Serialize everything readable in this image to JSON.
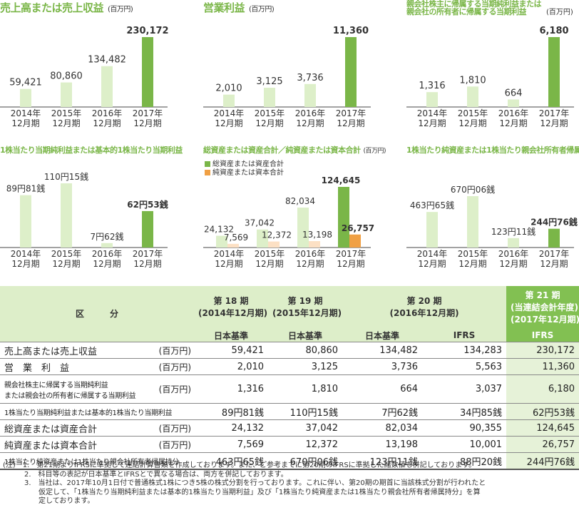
{
  "chart_data": [
    {
      "id": "c1",
      "type": "bar",
      "title": "売上高または売上収益",
      "unit": "(百万円)",
      "categories": [
        "2014年\n12月期",
        "2015年\n12月期",
        "2016年\n12月期",
        "2017年\n12月期"
      ],
      "values": [
        59421,
        80860,
        134482,
        230172
      ],
      "labels": [
        "59,421",
        "80,860",
        "134,482",
        "230,172"
      ]
    },
    {
      "id": "c2",
      "type": "bar",
      "title": "営業利益",
      "unit": "(百万円)",
      "categories": [
        "2014年\n12月期",
        "2015年\n12月期",
        "2016年\n12月期",
        "2017年\n12月期"
      ],
      "values": [
        2010,
        3125,
        3736,
        11360
      ],
      "labels": [
        "2,010",
        "3,125",
        "3,736",
        "11,360"
      ]
    },
    {
      "id": "c3",
      "type": "bar",
      "title": "親会社株主に帰属する当期純利益または\n親会社の所有者に帰属する当期利益",
      "unit": "(百万円)",
      "categories": [
        "2014年\n12月期",
        "2015年\n12月期",
        "2016年\n12月期",
        "2017年\n12月期"
      ],
      "values": [
        1316,
        1810,
        664,
        6180
      ],
      "labels": [
        "1,316",
        "1,810",
        "664",
        "6,180"
      ]
    },
    {
      "id": "c4",
      "type": "bar",
      "title": "1株当たり当期純利益または基本的1株当たり当期利益",
      "unit": "",
      "categories": [
        "2014年\n12月期",
        "2015年\n12月期",
        "2016年\n12月期",
        "2017年\n12月期"
      ],
      "values": [
        89.81,
        110.15,
        7.62,
        62.53
      ],
      "labels": [
        "89円81銭",
        "110円15銭",
        "7円62銭",
        "62円53銭"
      ]
    },
    {
      "id": "c5",
      "type": "bar",
      "title": "総資産または資産合計／純資産または資本合計",
      "unit": "(百万円)",
      "categories": [
        "2014年\n12月期",
        "2015年\n12月期",
        "2016年\n12月期",
        "2017年\n12月期"
      ],
      "series": [
        {
          "name": "総資産または資産合計",
          "values": [
            24132,
            37042,
            82034,
            124645
          ],
          "labels": [
            "24,132",
            "37,042",
            "82,034",
            "124,645"
          ]
        },
        {
          "name": "純資産または資本合計",
          "values": [
            7569,
            12372,
            13198,
            26757
          ],
          "labels": [
            "7,569",
            "12,372",
            "13,198",
            "26,757"
          ]
        }
      ]
    },
    {
      "id": "c6",
      "type": "bar",
      "title": "1株当たり純資産または1株当たり親会社所有者帰属持分",
      "unit": "",
      "categories": [
        "2014年\n12月期",
        "2015年\n12月期",
        "2016年\n12月期",
        "2017年\n12月期"
      ],
      "values": [
        463.65,
        670.06,
        123.11,
        244.76
      ],
      "labels": [
        "463円65銭",
        "670円06銭",
        "123円11銭",
        "244円76銭"
      ]
    }
  ],
  "colors": {
    "bar_light": "#ddefc9",
    "bar_highlight": "#7ab648",
    "bar_orange_light": "#fce0c4",
    "bar_orange": "#f0a044",
    "title_green": "#7ab648"
  },
  "table": {
    "header_section": "区　　　分",
    "periods": [
      {
        "label": "第 18 期",
        "sub": "(2014年12月期)"
      },
      {
        "label": "第 19 期",
        "sub": "(2015年12月期)"
      },
      {
        "label": "第 20 期",
        "sub": "(2016年12月期)"
      },
      {
        "label": "第 21 期",
        "sub": "(当連結会計年度)",
        "sub2": "(2017年12月期)"
      }
    ],
    "standards": [
      "日本基準",
      "日本基準",
      "日本基準",
      "IFRS",
      "IFRS"
    ],
    "rows": [
      {
        "label": "売上高または売上収益",
        "unit": "(百万円)",
        "values": [
          "59,421",
          "80,860",
          "134,482",
          "134,283",
          "230,172"
        ]
      },
      {
        "label": "営　業　利　益",
        "unit": "(百万円)",
        "values": [
          "2,010",
          "3,125",
          "3,736",
          "5,563",
          "11,360"
        ]
      },
      {
        "label": "親会社株主に帰属する当期純利益",
        "label2": "または親会社の所有者に帰属する当期利益",
        "unit": "(百万円)",
        "values": [
          "1,316",
          "1,810",
          "664",
          "3,037",
          "6,180"
        ]
      },
      {
        "label": "1株当たり当期純利益または基本的1株当たり当期利益",
        "unit": "",
        "values": [
          "89円81銭",
          "110円15銭",
          "7円62銭",
          "34円85銭",
          "62円53銭"
        ]
      },
      {
        "label": "総資産または資産合計",
        "unit": "(百万円)",
        "values": [
          "24,132",
          "37,042",
          "82,034",
          "90,355",
          "124,645"
        ]
      },
      {
        "label": "純資産または資本合計",
        "unit": "(百万円)",
        "values": [
          "7,569",
          "12,372",
          "13,198",
          "10,001",
          "26,757"
        ]
      },
      {
        "label": "1株当たり純資産または1株当たり親会社所有者帰属持分",
        "unit": "",
        "values": [
          "463円65銭",
          "670円06銭",
          "123円11銭",
          "88円20銭",
          "244円76銭"
        ]
      }
    ]
  },
  "notes": [
    "(注)　1.　第21期よりIFRSに準拠して連結計算書類を作成しております。また、ご参考までに第20期のIFRSに準拠した諸数値も併記しております。",
    "　　　2.　科目等の表記が日本基準とIFRSとで異なる場合は、両方を併記しております。",
    "　　　3.　当社は、2017年10月1日付で普通株式1株につき5株の株式分割を行っております。これに伴い、第20期の期首に当該株式分割が行われたと",
    "　　　　　仮定して、「1株当たり当期純利益または基本的1株当たり当期利益」及び「1株当たり純資産または1株当たり親会社所有者帰属持分」を算",
    "　　　　　定しております。"
  ]
}
